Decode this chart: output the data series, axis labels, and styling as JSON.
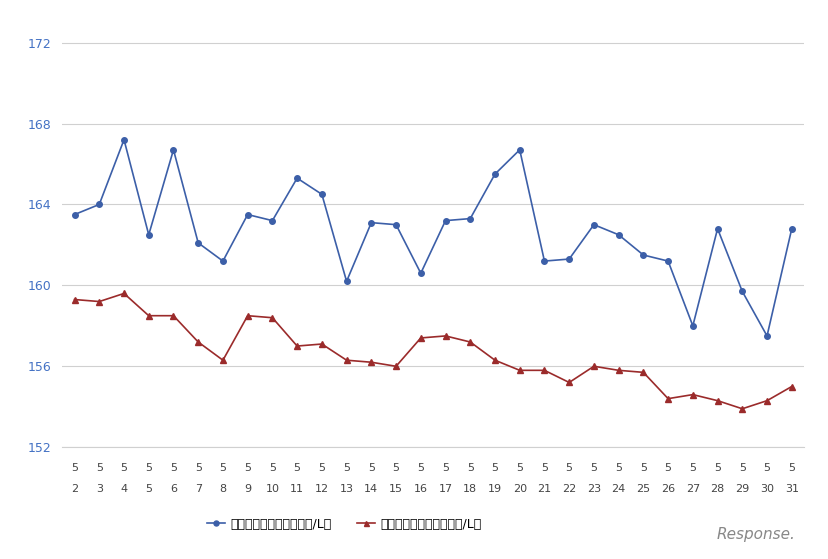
{
  "x_labels_top": [
    "5",
    "5",
    "5",
    "5",
    "5",
    "5",
    "5",
    "5",
    "5",
    "5",
    "5",
    "5",
    "5",
    "5",
    "5",
    "5",
    "5",
    "5",
    "5",
    "5",
    "5",
    "5",
    "5",
    "5",
    "5",
    "5",
    "5",
    "5",
    "5",
    "5"
  ],
  "x_labels_bottom": [
    "2",
    "3",
    "4",
    "5",
    "6",
    "7",
    "8",
    "9",
    "10",
    "11",
    "12",
    "13",
    "14",
    "15",
    "16",
    "17",
    "18",
    "19",
    "20",
    "21",
    "22",
    "23",
    "24",
    "25",
    "26",
    "27",
    "28",
    "29",
    "30",
    "31"
  ],
  "blue_values": [
    163.5,
    164.0,
    167.2,
    162.5,
    166.7,
    162.1,
    161.2,
    163.5,
    163.2,
    165.3,
    164.5,
    160.2,
    163.1,
    163.0,
    160.6,
    163.2,
    163.3,
    165.5,
    166.7,
    161.2,
    161.3,
    163.0,
    162.5,
    161.5,
    161.2,
    158.0,
    162.8,
    159.7,
    157.5,
    162.8
  ],
  "red_values": [
    159.3,
    159.2,
    159.6,
    158.5,
    158.5,
    157.2,
    156.3,
    158.5,
    158.4,
    157.0,
    157.1,
    156.3,
    156.2,
    156.0,
    157.4,
    157.5,
    157.2,
    156.3,
    155.8,
    155.8,
    155.2,
    156.0,
    155.8,
    155.7,
    154.4,
    154.6,
    154.3,
    153.9,
    154.3,
    155.0
  ],
  "blue_color": "#3C5FA8",
  "red_color": "#9B2B2B",
  "ylim_min": 152,
  "ylim_max": 173,
  "yticks": [
    152,
    156,
    160,
    164,
    168,
    172
  ],
  "legend_blue": "レギュラー看板価格（円/L）",
  "legend_red": "レギュラー実売価格（円/L）",
  "background_color": "#ffffff",
  "grid_color": "#d0d0d0",
  "ytick_color": "#4472C4",
  "response_text": "Response.",
  "response_color": "#888888"
}
